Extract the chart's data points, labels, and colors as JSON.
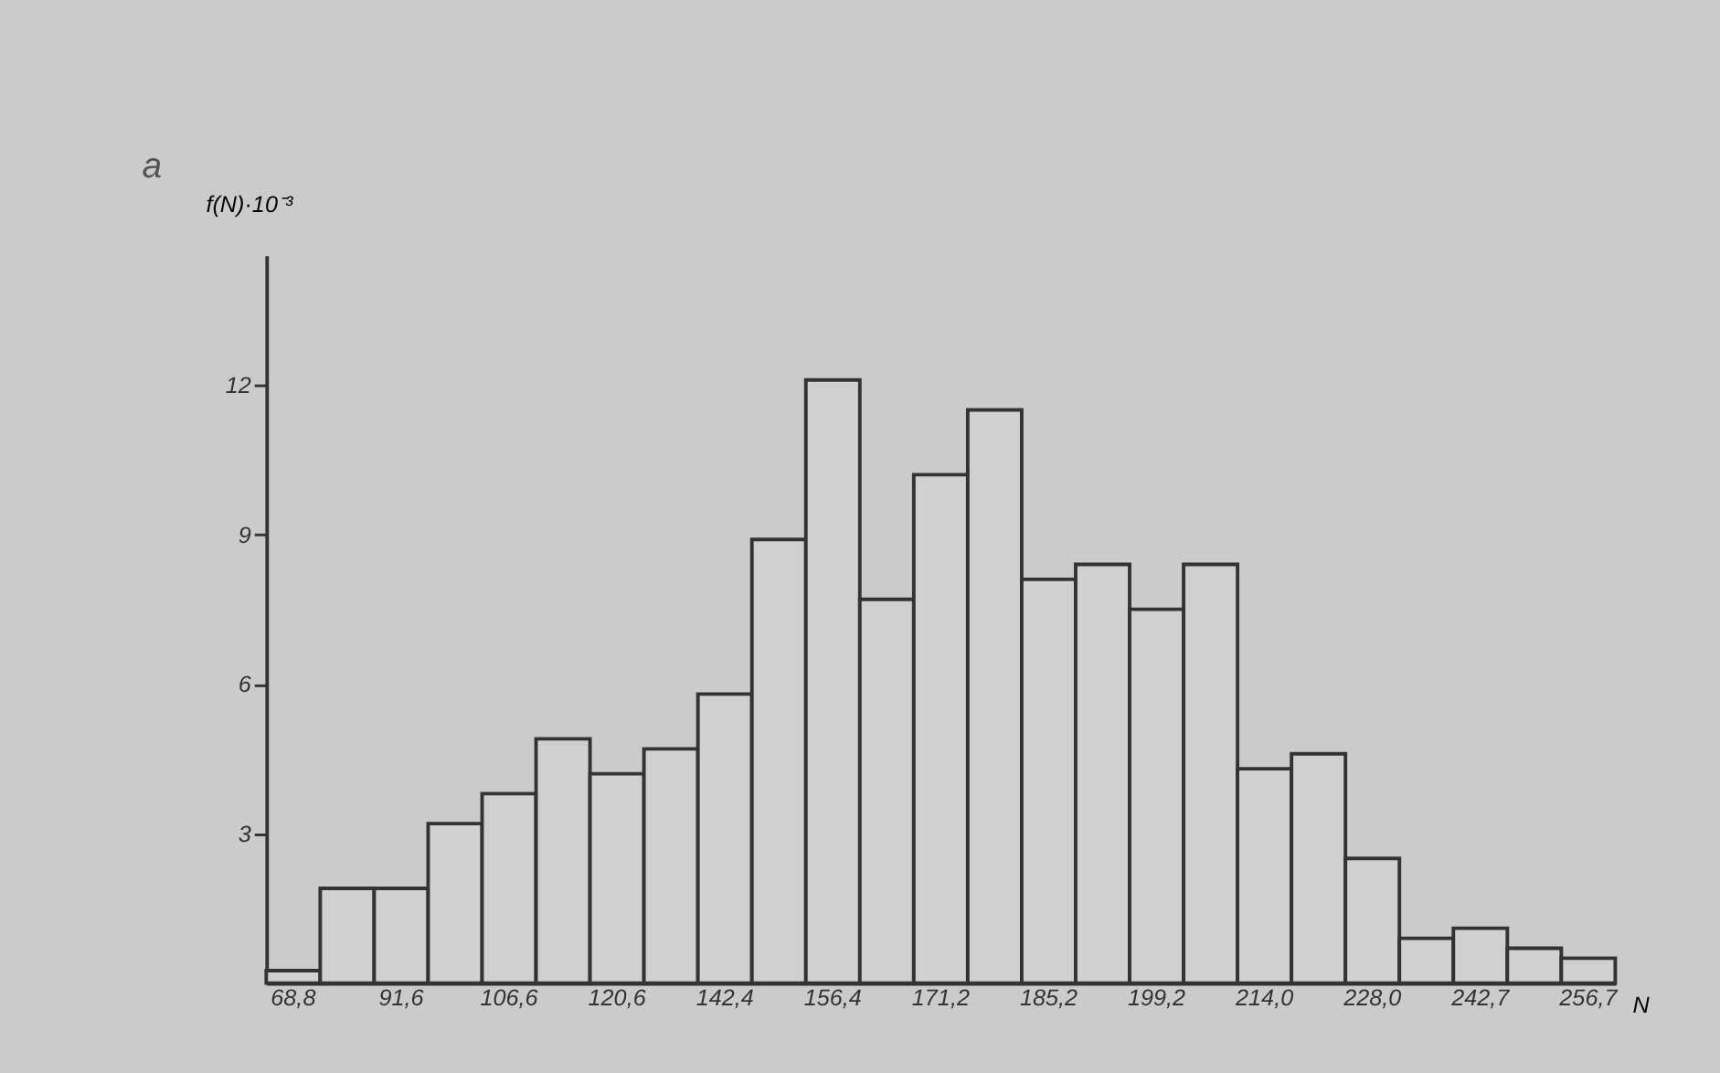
{
  "chart_data": {
    "type": "bar",
    "ylabel": "f(N)·10⁻³",
    "xlabel": "N",
    "annotations": [
      "a"
    ],
    "categories": [
      "68,8",
      null,
      "91,6",
      null,
      "106,6",
      null,
      "120,6",
      null,
      "142,4",
      null,
      "156,4",
      null,
      "171,2",
      null,
      "185,2",
      null,
      "199,2",
      null,
      "214,0",
      null,
      "228,0",
      null,
      "242,7",
      null,
      "256,7"
    ],
    "values": [
      0.25,
      1.9,
      1.9,
      3.2,
      3.8,
      4.9,
      4.2,
      4.7,
      5.8,
      8.9,
      12.1,
      7.7,
      10.2,
      11.5,
      8.1,
      8.4,
      7.5,
      8.4,
      4.3,
      4.6,
      2.5,
      0.9,
      1.1,
      0.7,
      0.5
    ],
    "color": "#d0d0d0",
    "ylim": [
      0,
      14.6
    ],
    "yticks": [
      3,
      6,
      9,
      12
    ],
    "grid": false
  }
}
